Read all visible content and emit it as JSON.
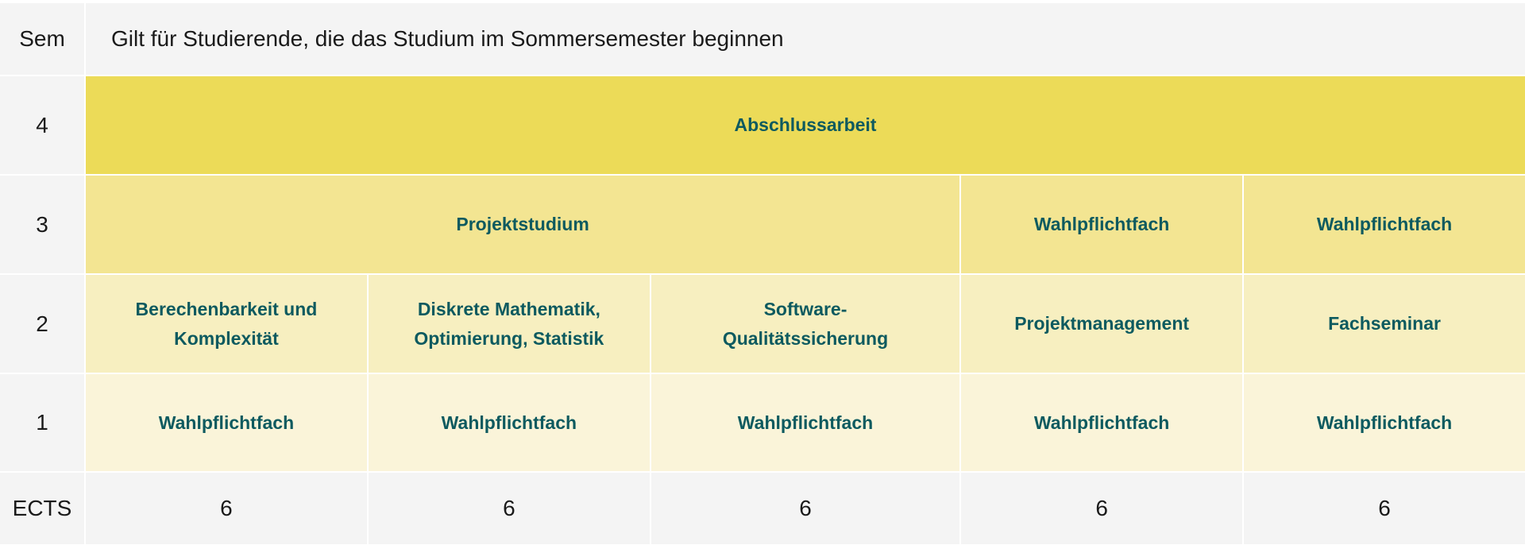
{
  "header": {
    "sem_label": "Sem",
    "title": "Gilt für Studierende, die das Studium im Sommersemester beginnen"
  },
  "colors": {
    "row4": "#ecdb58",
    "row3": "#f3e592",
    "row2": "#f7efc0",
    "row1": "#faf4d9",
    "text": "#0d5a5f"
  },
  "rows": {
    "sem4": {
      "label": "4",
      "modules": [
        "Abschlussarbeit"
      ]
    },
    "sem3": {
      "label": "3",
      "modules": [
        "Projektstudium",
        "Wahlpflichtfach",
        "Wahlpflichtfach"
      ]
    },
    "sem2": {
      "label": "2",
      "modules": [
        "Berechenbarkeit und Komplexität",
        "Diskrete Mathematik, Optimierung, Statistik",
        "Software-Qualitätssicherung",
        "Projektmanagement",
        "Fachseminar"
      ]
    },
    "sem1": {
      "label": "1",
      "modules": [
        "Wahlpflichtfach",
        "Wahlpflichtfach",
        "Wahlpflichtfach",
        "Wahlpflichtfach",
        "Wahlpflichtfach"
      ]
    }
  },
  "ects": {
    "label": "ECTS",
    "values": [
      "6",
      "6",
      "6",
      "6",
      "6"
    ]
  }
}
